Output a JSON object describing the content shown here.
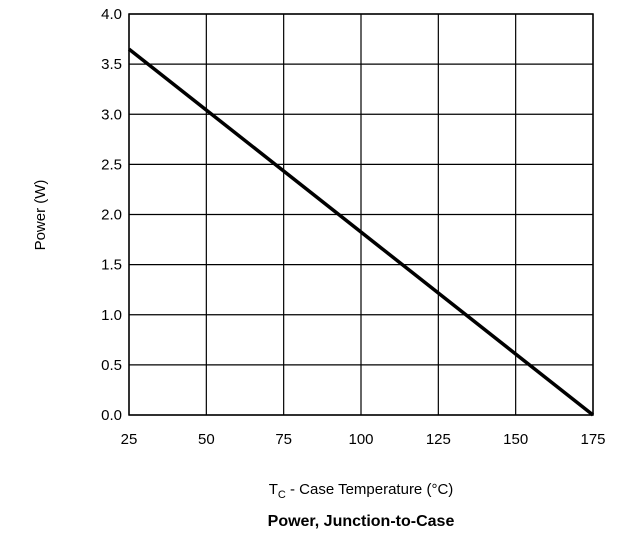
{
  "chart_data": {
    "type": "line",
    "title": "Power, Junction-to-Case",
    "xlabel": {
      "prefix": "T",
      "subscript": "C",
      "suffix": " - Case Temperature (°C)"
    },
    "ylabel": "Power (W)",
    "xlim": [
      25,
      175
    ],
    "ylim": [
      0,
      4
    ],
    "xticks": [
      25,
      50,
      75,
      100,
      125,
      150,
      175
    ],
    "yticks": [
      "0.0",
      "0.5",
      "1.0",
      "1.5",
      "2.0",
      "2.5",
      "3.0",
      "3.5",
      "4.0"
    ],
    "grid": true,
    "legend": "none",
    "series": [
      {
        "x": [
          25,
          175
        ],
        "y": [
          3.65,
          0
        ],
        "color": "#000000"
      }
    ]
  }
}
